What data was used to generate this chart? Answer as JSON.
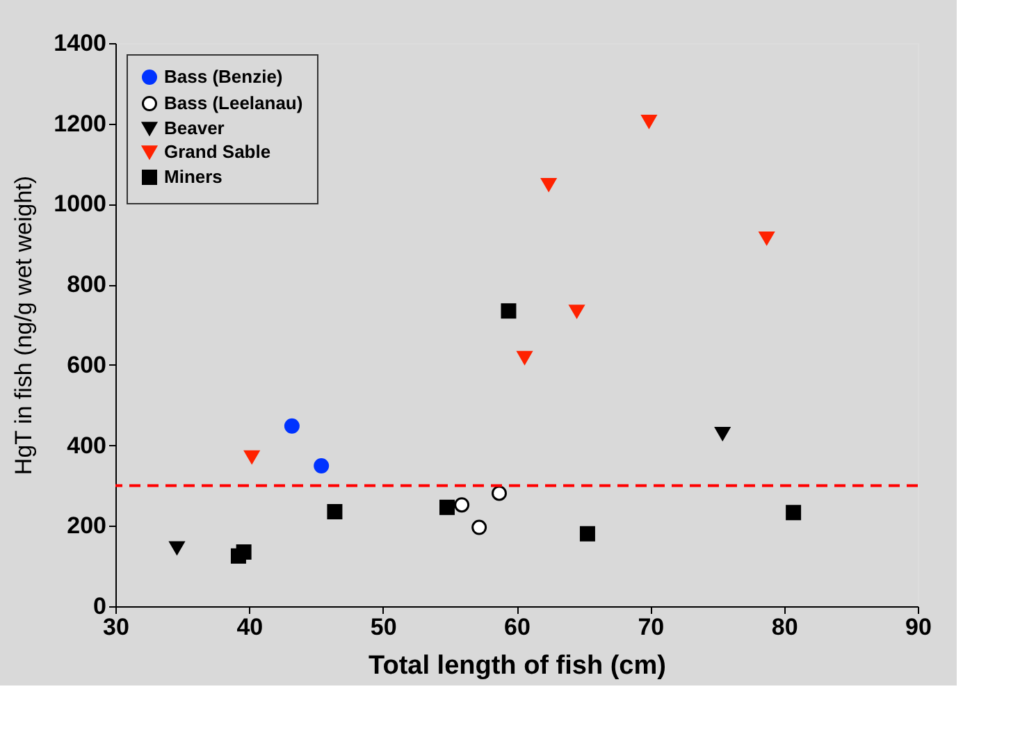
{
  "chart_data": {
    "type": "scatter",
    "xlabel": "Total length of fish (cm)",
    "ylabel": "HgT in fish (ng/g wet weight)",
    "xlim": [
      30,
      90
    ],
    "xticks": [
      30,
      40,
      50,
      60,
      70,
      80,
      90
    ],
    "ylim": [
      0,
      1400
    ],
    "yticks": [
      0,
      200,
      400,
      600,
      800,
      1000,
      1200,
      1400
    ],
    "legend": "top left",
    "series": [
      {
        "name": "Bass (Benzie)",
        "color": "#0033ff",
        "marker": "circle",
        "x": [
          43.2,
          45.4
        ],
        "values": [
          448,
          349
        ]
      },
      {
        "name": "Bass (Leelanau)",
        "color": "#ffffff",
        "marker": "circle",
        "x": [
          55.9,
          57.2,
          58.7
        ],
        "values": [
          252,
          196,
          281
        ]
      },
      {
        "name": "Beaver",
        "color": "#000000",
        "marker": "triangle",
        "x": [
          34.6,
          75.4
        ],
        "values": [
          145,
          429
        ]
      },
      {
        "name": "Grand Sable",
        "color": "#ff2200",
        "marker": "triangle",
        "x": [
          40.2,
          60.6,
          62.4,
          64.5,
          69.9,
          78.7
        ],
        "values": [
          371,
          618,
          1048,
          733,
          1205,
          915
        ]
      },
      {
        "name": "Miners",
        "color": "#000000",
        "marker": "square",
        "x": [
          39.2,
          39.6,
          46.4,
          54.8,
          59.4,
          65.3,
          80.7
        ],
        "values": [
          125,
          135,
          235,
          246,
          734,
          180,
          233
        ]
      }
    ],
    "ref_lines": [
      {
        "axis": "y",
        "value": 300,
        "color": "#ff0000",
        "line_style": "dashed"
      }
    ]
  }
}
